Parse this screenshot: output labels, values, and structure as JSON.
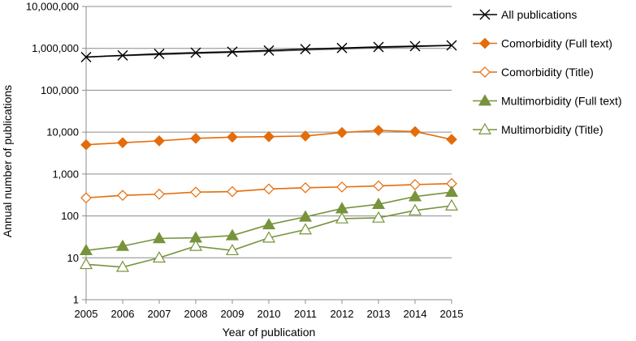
{
  "chart_data": {
    "type": "line",
    "title": "",
    "xlabel": "Year of publication",
    "ylabel": "Annual number of publications",
    "yscale": "log",
    "ylim": [
      1,
      10000000
    ],
    "grid": "horizontal",
    "legend_position": "right",
    "x": [
      2005,
      2006,
      2007,
      2008,
      2009,
      2010,
      2011,
      2012,
      2013,
      2014,
      2015
    ],
    "x_tick_labels": [
      "2005",
      "2006",
      "2007",
      "2008",
      "2009",
      "2010",
      "2011",
      "2012",
      "2013",
      "2014",
      "2015"
    ],
    "y_ticks": [
      1,
      10,
      100,
      1000,
      10000,
      100000,
      1000000,
      10000000
    ],
    "y_tick_labels": [
      "1",
      "10",
      "100",
      "1,000",
      "10,000",
      "100,000",
      "1,000,000",
      "10,000,000"
    ],
    "series": [
      {
        "name": "All publications",
        "color": "#000000",
        "marker": "x",
        "values": [
          620000,
          680000,
          740000,
          790000,
          830000,
          890000,
          960000,
          1020000,
          1080000,
          1130000,
          1180000
        ],
        "trendline": [
          620000,
          1160000
        ]
      },
      {
        "name": "Comorbidity (Full text)",
        "color": "#E46C0A",
        "marker": "diamond-filled",
        "values": [
          5000,
          5600,
          6200,
          7100,
          7600,
          7800,
          8100,
          9800,
          11000,
          10300,
          6700
        ]
      },
      {
        "name": "Comorbidity (Title)",
        "color": "#E46C0A",
        "marker": "diamond-open",
        "values": [
          270,
          310,
          330,
          370,
          380,
          440,
          470,
          490,
          520,
          560,
          590
        ]
      },
      {
        "name": "Multimorbidity (Full text)",
        "color": "#77933C",
        "marker": "triangle-filled",
        "values": [
          15,
          19,
          29,
          30,
          34,
          62,
          95,
          150,
          190,
          290,
          370
        ]
      },
      {
        "name": "Multimorbidity (Title)",
        "color": "#77933C",
        "marker": "triangle-open",
        "values": [
          7,
          6,
          10,
          19,
          15,
          30,
          47,
          86,
          90,
          135,
          175
        ]
      }
    ]
  }
}
